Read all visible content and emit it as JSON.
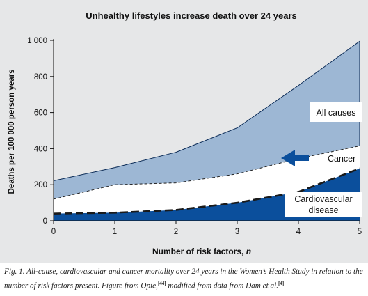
{
  "chart_data": {
    "type": "area",
    "title": "Unhealthy lifestyles increase death over 24 years",
    "xlabel": "Number of risk factors,",
    "xlabel_var": "n",
    "ylabel": "Deaths per 100 000 person years",
    "xlim": [
      0,
      5
    ],
    "ylim": [
      0,
      1000
    ],
    "x_ticks": [
      "0",
      "1",
      "2",
      "3",
      "4",
      "5"
    ],
    "y_ticks": [
      {
        "value": 0,
        "label": "0"
      },
      {
        "value": 200,
        "label": "200"
      },
      {
        "value": 400,
        "label": "400"
      },
      {
        "value": 600,
        "label": "600"
      },
      {
        "value": 800,
        "label": "800"
      },
      {
        "value": 1000,
        "label": "1 000"
      }
    ],
    "x": [
      0,
      1,
      2,
      3,
      4,
      5
    ],
    "series": [
      {
        "name": "All causes",
        "values": [
          222,
          295,
          380,
          515,
          750,
          995
        ],
        "color": "#9db7d4"
      },
      {
        "name": "Cancer",
        "values": [
          120,
          200,
          210,
          260,
          345,
          415
        ],
        "color": "#ffffff"
      },
      {
        "name": "Cardiovascular disease",
        "values": [
          40,
          45,
          60,
          100,
          160,
          290
        ],
        "color": "#0b4f9c"
      }
    ],
    "annotations": {
      "all_causes": "All causes",
      "cancer": "Cancer",
      "cardio_line1": "Cardiovascular",
      "cardio_line2": "disease"
    },
    "grid": false
  },
  "caption": {
    "text": "Fig. 1. All-cause, cardiovascular and cancer mortality over 24 years in the Women’s Health Study in relation to the number of risk factors present. Figure from Opie,",
    "ref1": "[44]",
    "text2": " modified from data from Dam et al.",
    "ref2": "[4]"
  }
}
